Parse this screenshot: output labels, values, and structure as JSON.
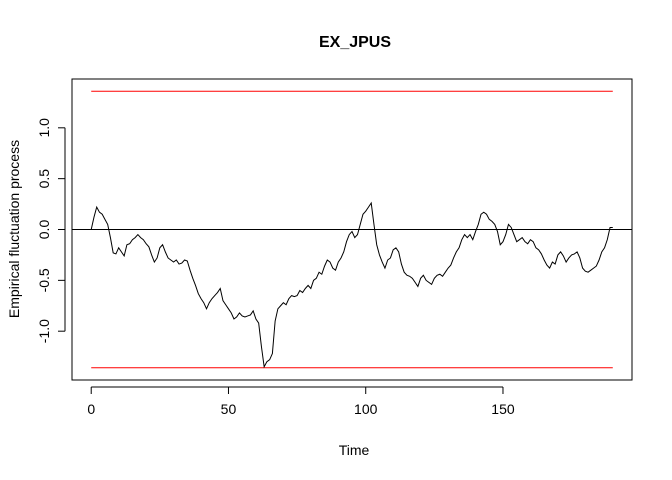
{
  "chart_data": {
    "type": "line",
    "title": "EX_JPUS",
    "xlabel": "Time",
    "ylabel": "Empirical fluctuation process",
    "xlim": [
      -7,
      197
    ],
    "ylim": [
      -1.48,
      1.48
    ],
    "x_ticks": [
      0,
      50,
      100,
      150
    ],
    "y_ticks": [
      -1.0,
      -0.5,
      0.0,
      0.5,
      1.0
    ],
    "y_tick_labels": [
      "-1.0",
      "-0.5",
      "0.0",
      "0.5",
      "1.0"
    ],
    "grid": false,
    "legend": "none",
    "boundary": {
      "upper": 1.36,
      "lower": -1.36,
      "x_range": [
        0,
        190
      ],
      "color": "#ff0000"
    },
    "zero_line": {
      "y": 0,
      "color": "#000000"
    },
    "series": [
      {
        "color": "#000000",
        "x": [
          0,
          1,
          2,
          3,
          4,
          5,
          6,
          7,
          8,
          9,
          10,
          11,
          12,
          13,
          14,
          15,
          16,
          17,
          18,
          19,
          20,
          21,
          22,
          23,
          24,
          25,
          26,
          27,
          28,
          29,
          30,
          31,
          32,
          33,
          34,
          35,
          36,
          37,
          38,
          39,
          40,
          41,
          42,
          43,
          44,
          45,
          46,
          47,
          48,
          49,
          50,
          51,
          52,
          53,
          54,
          55,
          56,
          57,
          58,
          59,
          60,
          61,
          62,
          63,
          64,
          65,
          66,
          67,
          68,
          69,
          70,
          71,
          72,
          73,
          74,
          75,
          76,
          77,
          78,
          79,
          80,
          81,
          82,
          83,
          84,
          85,
          86,
          87,
          88,
          89,
          90,
          91,
          92,
          93,
          94,
          95,
          96,
          97,
          98,
          99,
          100,
          101,
          102,
          103,
          104,
          105,
          106,
          107,
          108,
          109,
          110,
          111,
          112,
          113,
          114,
          115,
          116,
          117,
          118,
          119,
          120,
          121,
          122,
          123,
          124,
          125,
          126,
          127,
          128,
          129,
          130,
          131,
          132,
          133,
          134,
          135,
          136,
          137,
          138,
          139,
          140,
          141,
          142,
          143,
          144,
          145,
          146,
          147,
          148,
          149,
          150,
          151,
          152,
          153,
          154,
          155,
          156,
          157,
          158,
          159,
          160,
          161,
          162,
          163,
          164,
          165,
          166,
          167,
          168,
          169,
          170,
          171,
          172,
          173,
          174,
          175,
          176,
          177,
          178,
          179,
          180,
          181,
          182,
          183,
          184,
          185,
          186,
          187,
          188,
          189,
          190
        ],
        "y": [
          0.0,
          0.12,
          0.22,
          0.17,
          0.15,
          0.1,
          0.05,
          -0.08,
          -0.23,
          -0.24,
          -0.18,
          -0.22,
          -0.26,
          -0.15,
          -0.14,
          -0.1,
          -0.08,
          -0.05,
          -0.08,
          -0.1,
          -0.14,
          -0.17,
          -0.25,
          -0.32,
          -0.28,
          -0.18,
          -0.15,
          -0.22,
          -0.28,
          -0.3,
          -0.32,
          -0.3,
          -0.34,
          -0.33,
          -0.3,
          -0.31,
          -0.4,
          -0.48,
          -0.55,
          -0.63,
          -0.68,
          -0.72,
          -0.78,
          -0.72,
          -0.68,
          -0.65,
          -0.62,
          -0.58,
          -0.7,
          -0.74,
          -0.78,
          -0.82,
          -0.88,
          -0.86,
          -0.82,
          -0.85,
          -0.86,
          -0.85,
          -0.84,
          -0.8,
          -0.88,
          -0.92,
          -1.15,
          -1.35,
          -1.3,
          -1.28,
          -1.22,
          -0.9,
          -0.78,
          -0.75,
          -0.72,
          -0.74,
          -0.68,
          -0.65,
          -0.66,
          -0.65,
          -0.6,
          -0.62,
          -0.58,
          -0.55,
          -0.58,
          -0.5,
          -0.48,
          -0.42,
          -0.44,
          -0.36,
          -0.3,
          -0.32,
          -0.38,
          -0.4,
          -0.32,
          -0.28,
          -0.22,
          -0.12,
          -0.05,
          -0.02,
          -0.08,
          -0.05,
          0.05,
          0.15,
          0.18,
          0.22,
          0.26,
          0.05,
          -0.15,
          -0.25,
          -0.32,
          -0.38,
          -0.3,
          -0.28,
          -0.2,
          -0.18,
          -0.22,
          -0.34,
          -0.42,
          -0.45,
          -0.46,
          -0.48,
          -0.52,
          -0.56,
          -0.48,
          -0.45,
          -0.5,
          -0.52,
          -0.54,
          -0.48,
          -0.45,
          -0.44,
          -0.46,
          -0.42,
          -0.38,
          -0.35,
          -0.28,
          -0.22,
          -0.18,
          -0.1,
          -0.05,
          -0.08,
          -0.05,
          -0.1,
          -0.02,
          0.05,
          0.15,
          0.17,
          0.15,
          0.1,
          0.08,
          0.05,
          -0.02,
          -0.15,
          -0.12,
          -0.05,
          0.05,
          0.02,
          -0.05,
          -0.12,
          -0.1,
          -0.08,
          -0.12,
          -0.14,
          -0.1,
          -0.12,
          -0.18,
          -0.2,
          -0.24,
          -0.3,
          -0.35,
          -0.38,
          -0.32,
          -0.34,
          -0.25,
          -0.22,
          -0.26,
          -0.32,
          -0.28,
          -0.25,
          -0.24,
          -0.22,
          -0.28,
          -0.38,
          -0.41,
          -0.42,
          -0.4,
          -0.38,
          -0.36,
          -0.3,
          -0.22,
          -0.18,
          -0.1,
          0.02,
          0.02
        ]
      }
    ]
  }
}
